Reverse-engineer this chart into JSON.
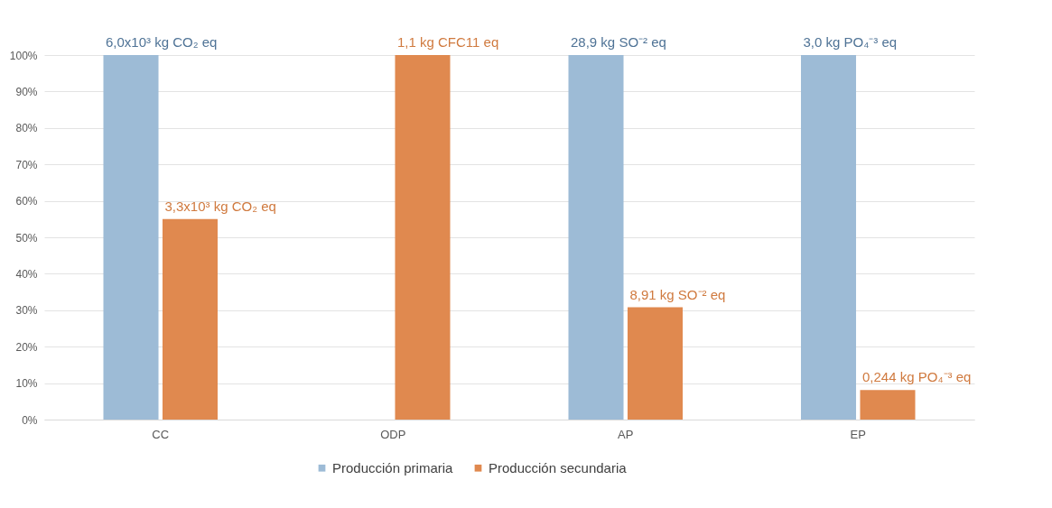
{
  "chart_data": {
    "type": "bar",
    "categories": [
      "CC",
      "ODP",
      "AP",
      "EP"
    ],
    "series": [
      {
        "name": "Producción primaria",
        "color": "#9dbbd6",
        "values": [
          100,
          null,
          100,
          100
        ]
      },
      {
        "name": "Producción secundaria",
        "color": "#e0894f",
        "values": [
          55,
          100,
          30.8,
          8.1
        ]
      }
    ],
    "annotations": [
      {
        "text": "6,0x10³ kg CO₂ eq",
        "x": "CC",
        "y": 100
      },
      {
        "text": "3,3x10³ kg CO₂ eq",
        "x": "CC",
        "y": 55
      },
      {
        "text": "1,1 kg CFC11 eq",
        "x": "ODP",
        "y": 100
      },
      {
        "text": "28,9 kg SO⁻² eq",
        "x": "AP",
        "y": 100
      },
      {
        "text": "8,91 kg SO⁻² eq",
        "x": "AP",
        "y": 30.8
      },
      {
        "text": "3,0 kg PO₄⁻³ eq",
        "x": "EP",
        "y": 100
      },
      {
        "text": "0,244 kg PO₄⁻³ eq",
        "x": "EP",
        "y": 8.1
      }
    ],
    "ylim": [
      0,
      100
    ],
    "yticks": [
      {
        "value": 0,
        "label": "0%"
      },
      {
        "value": 10,
        "label": "10%"
      },
      {
        "value": 20,
        "label": "20%"
      },
      {
        "value": 30,
        "label": "30%"
      },
      {
        "value": 40,
        "label": "40%"
      },
      {
        "value": 50,
        "label": "50%"
      },
      {
        "value": 60,
        "label": "60%"
      },
      {
        "value": 70,
        "label": "70%"
      },
      {
        "value": 80,
        "label": "80%"
      },
      {
        "value": 90,
        "label": "90%"
      },
      {
        "value": 100,
        "label": "100%"
      }
    ],
    "grid": "y",
    "legend": "bottom"
  }
}
